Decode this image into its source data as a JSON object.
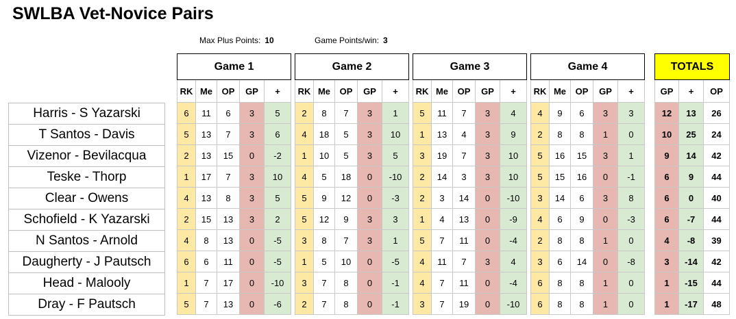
{
  "title": "SWLBA Vet-Novice Pairs",
  "params": {
    "max_plus_label": "Max Plus Points:",
    "max_plus_value": "10",
    "game_points_label": "Game Points/win:",
    "game_points_value": "3"
  },
  "games": [
    {
      "title": "Game 1"
    },
    {
      "title": "Game 2"
    },
    {
      "title": "Game 3"
    },
    {
      "title": "Game 4"
    }
  ],
  "game_columns": [
    "RK",
    "Me",
    "OP",
    "GP",
    "+"
  ],
  "totals": {
    "title": "TOTALS",
    "columns": [
      "GP",
      "+",
      "OP"
    ]
  },
  "colors": {
    "rank": "#fde8a4",
    "gp": "#e6b8b1",
    "plus": "#d9ead3",
    "totals_header": "#ffff00"
  },
  "pairs": [
    {
      "name": "Harris - S Yazarski",
      "games": [
        [
          "6",
          "11",
          "6",
          "3",
          "5"
        ],
        [
          "2",
          "8",
          "7",
          "3",
          "1"
        ],
        [
          "5",
          "11",
          "7",
          "3",
          "4"
        ],
        [
          "4",
          "9",
          "6",
          "3",
          "3"
        ]
      ],
      "totals": [
        "12",
        "13",
        "26"
      ]
    },
    {
      "name": "T Santos - Davis",
      "games": [
        [
          "5",
          "13",
          "7",
          "3",
          "6"
        ],
        [
          "4",
          "18",
          "5",
          "3",
          "10"
        ],
        [
          "1",
          "13",
          "4",
          "3",
          "9"
        ],
        [
          "2",
          "8",
          "8",
          "1",
          "0"
        ]
      ],
      "totals": [
        "10",
        "25",
        "24"
      ]
    },
    {
      "name": "Vizenor - Bevilacqua",
      "games": [
        [
          "2",
          "13",
          "15",
          "0",
          "-2"
        ],
        [
          "1",
          "10",
          "5",
          "3",
          "5"
        ],
        [
          "3",
          "19",
          "7",
          "3",
          "10"
        ],
        [
          "5",
          "16",
          "15",
          "3",
          "1"
        ]
      ],
      "totals": [
        "9",
        "14",
        "42"
      ]
    },
    {
      "name": "Teske - Thorp",
      "games": [
        [
          "1",
          "17",
          "7",
          "3",
          "10"
        ],
        [
          "4",
          "5",
          "18",
          "0",
          "-10"
        ],
        [
          "2",
          "14",
          "3",
          "3",
          "10"
        ],
        [
          "5",
          "15",
          "16",
          "0",
          "-1"
        ]
      ],
      "totals": [
        "6",
        "9",
        "44"
      ]
    },
    {
      "name": "Clear - Owens",
      "games": [
        [
          "4",
          "13",
          "8",
          "3",
          "5"
        ],
        [
          "5",
          "9",
          "12",
          "0",
          "-3"
        ],
        [
          "2",
          "3",
          "14",
          "0",
          "-10"
        ],
        [
          "3",
          "14",
          "6",
          "3",
          "8"
        ]
      ],
      "totals": [
        "6",
        "0",
        "40"
      ]
    },
    {
      "name": "Schofield - K Yazarski",
      "games": [
        [
          "2",
          "15",
          "13",
          "3",
          "2"
        ],
        [
          "5",
          "12",
          "9",
          "3",
          "3"
        ],
        [
          "1",
          "4",
          "13",
          "0",
          "-9"
        ],
        [
          "4",
          "6",
          "9",
          "0",
          "-3"
        ]
      ],
      "totals": [
        "6",
        "-7",
        "44"
      ]
    },
    {
      "name": "N Santos - Arnold",
      "games": [
        [
          "4",
          "8",
          "13",
          "0",
          "-5"
        ],
        [
          "3",
          "8",
          "7",
          "3",
          "1"
        ],
        [
          "5",
          "7",
          "11",
          "0",
          "-4"
        ],
        [
          "2",
          "8",
          "8",
          "1",
          "0"
        ]
      ],
      "totals": [
        "4",
        "-8",
        "39"
      ]
    },
    {
      "name": "Daugherty - J Pautsch",
      "games": [
        [
          "6",
          "6",
          "11",
          "0",
          "-5"
        ],
        [
          "1",
          "5",
          "10",
          "0",
          "-5"
        ],
        [
          "4",
          "11",
          "7",
          "3",
          "4"
        ],
        [
          "3",
          "6",
          "14",
          "0",
          "-8"
        ]
      ],
      "totals": [
        "3",
        "-14",
        "42"
      ]
    },
    {
      "name": "Head - Malooly",
      "games": [
        [
          "1",
          "7",
          "17",
          "0",
          "-10"
        ],
        [
          "3",
          "7",
          "8",
          "0",
          "-1"
        ],
        [
          "4",
          "7",
          "11",
          "0",
          "-4"
        ],
        [
          "6",
          "8",
          "8",
          "1",
          "0"
        ]
      ],
      "totals": [
        "1",
        "-15",
        "44"
      ]
    },
    {
      "name": "Dray - F Pautsch",
      "games": [
        [
          "5",
          "7",
          "13",
          "0",
          "-6"
        ],
        [
          "2",
          "7",
          "8",
          "0",
          "-1"
        ],
        [
          "3",
          "7",
          "19",
          "0",
          "-10"
        ],
        [
          "6",
          "8",
          "8",
          "1",
          "0"
        ]
      ],
      "totals": [
        "1",
        "-17",
        "48"
      ]
    }
  ]
}
